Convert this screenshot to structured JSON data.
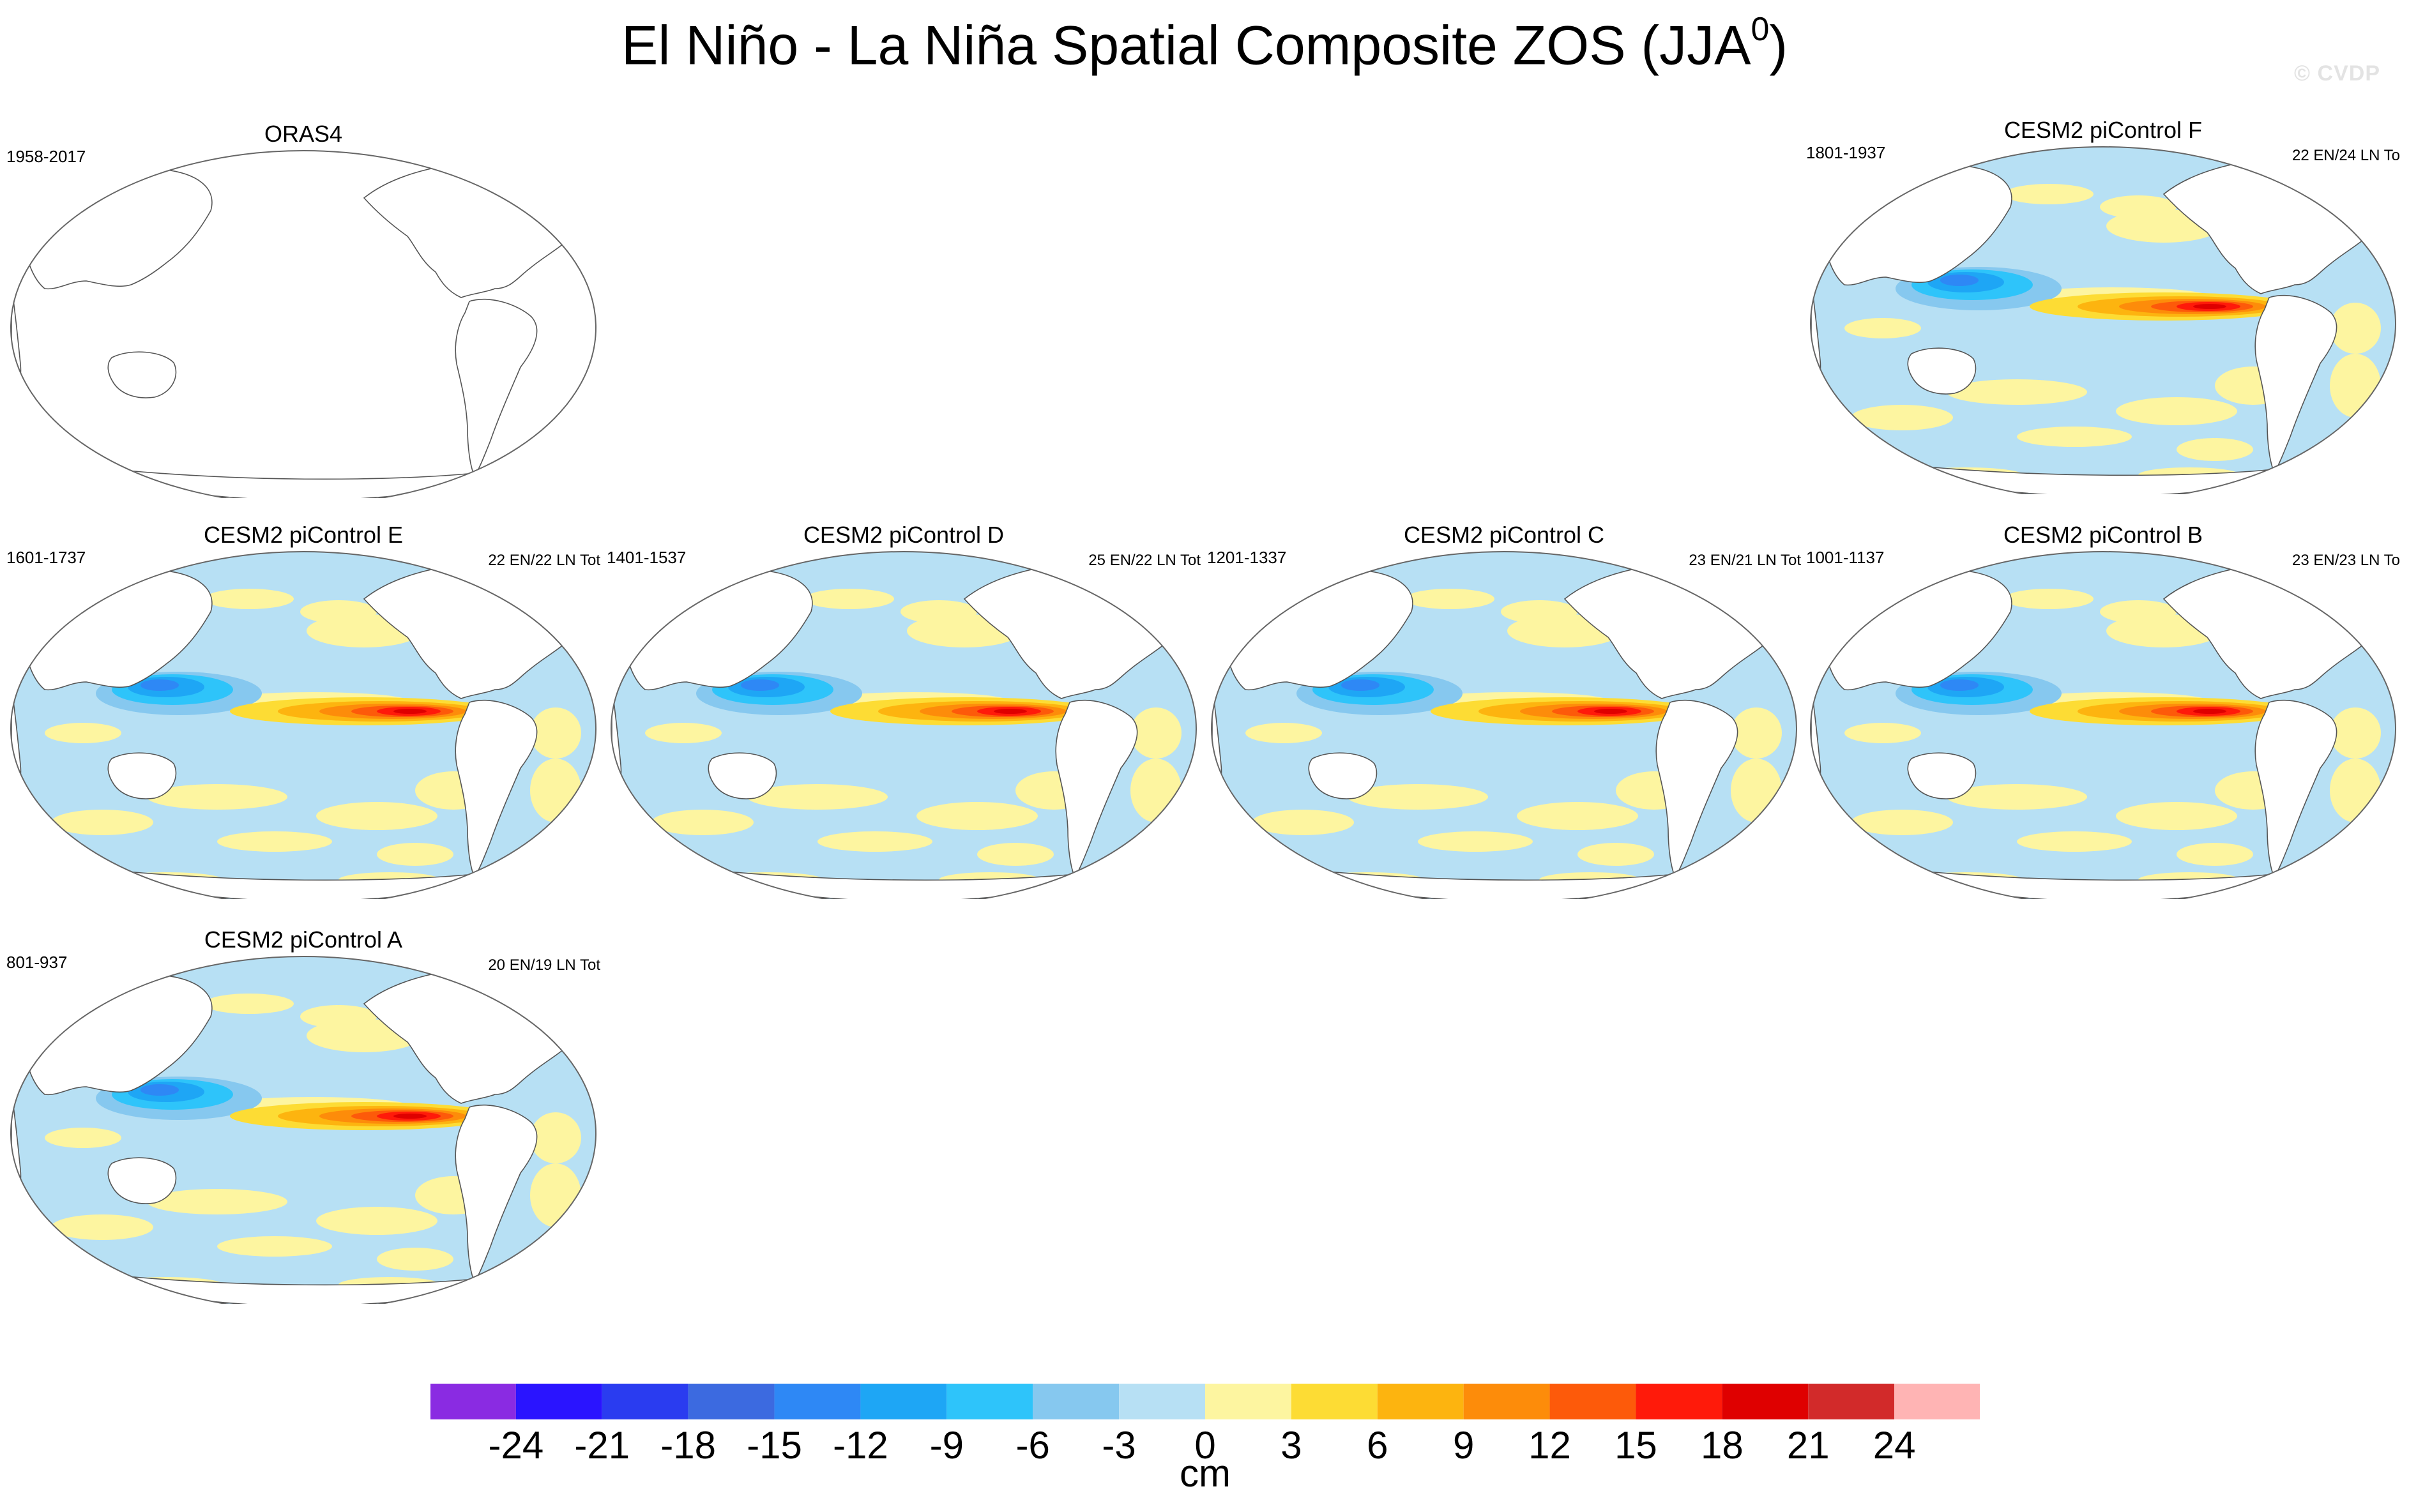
{
  "title": "El Niño - La Niña Spatial Composite ZOS (JJA",
  "title_sup": "0",
  "title_close": ")",
  "watermark": "© CVDP",
  "panels": [
    {
      "id": "orass4",
      "title": "ORAS4",
      "years": "1958-2017",
      "counts": "",
      "filled": false
    },
    {
      "id": "F",
      "title": "CESM2 piControl F",
      "years": "1801-1937",
      "counts": "22 EN/24 LN To",
      "filled": true
    },
    {
      "id": "E",
      "title": "CESM2 piControl E",
      "years": "1601-1737",
      "counts": "22 EN/22 LN Tot",
      "filled": true
    },
    {
      "id": "D",
      "title": "CESM2 piControl D",
      "years": "1401-1537",
      "counts": "25 EN/22 LN Tot",
      "filled": true
    },
    {
      "id": "C",
      "title": "CESM2 piControl C",
      "years": "1201-1337",
      "counts": "23 EN/21 LN Tot",
      "filled": true
    },
    {
      "id": "B",
      "title": "CESM2 piControl B",
      "years": "1001-1137",
      "counts": "23 EN/23 LN To",
      "filled": true
    },
    {
      "id": "A",
      "title": "CESM2 piControl A",
      "years": "801-937",
      "counts": "20 EN/19 LN Tot",
      "filled": true
    }
  ],
  "colorbar": {
    "colors": [
      "#8a2be2",
      "#2a14ff",
      "#2a3cf0",
      "#3c6ae0",
      "#2e88f5",
      "#1ea6f5",
      "#2ec4fa",
      "#86c8ef",
      "#b7e0f4",
      "#fdf5a0",
      "#fddc34",
      "#fdb40f",
      "#fd8c0a",
      "#fd5a0a",
      "#ff1a0a",
      "#df0000",
      "#d22a2a",
      "#ffb4b4"
    ],
    "ticks": [
      "-24",
      "-21",
      "-18",
      "-15",
      "-12",
      "-9",
      "-6",
      "-3",
      "0",
      "3",
      "6",
      "9",
      "12",
      "15",
      "18",
      "21",
      "24"
    ],
    "units": "cm"
  }
}
